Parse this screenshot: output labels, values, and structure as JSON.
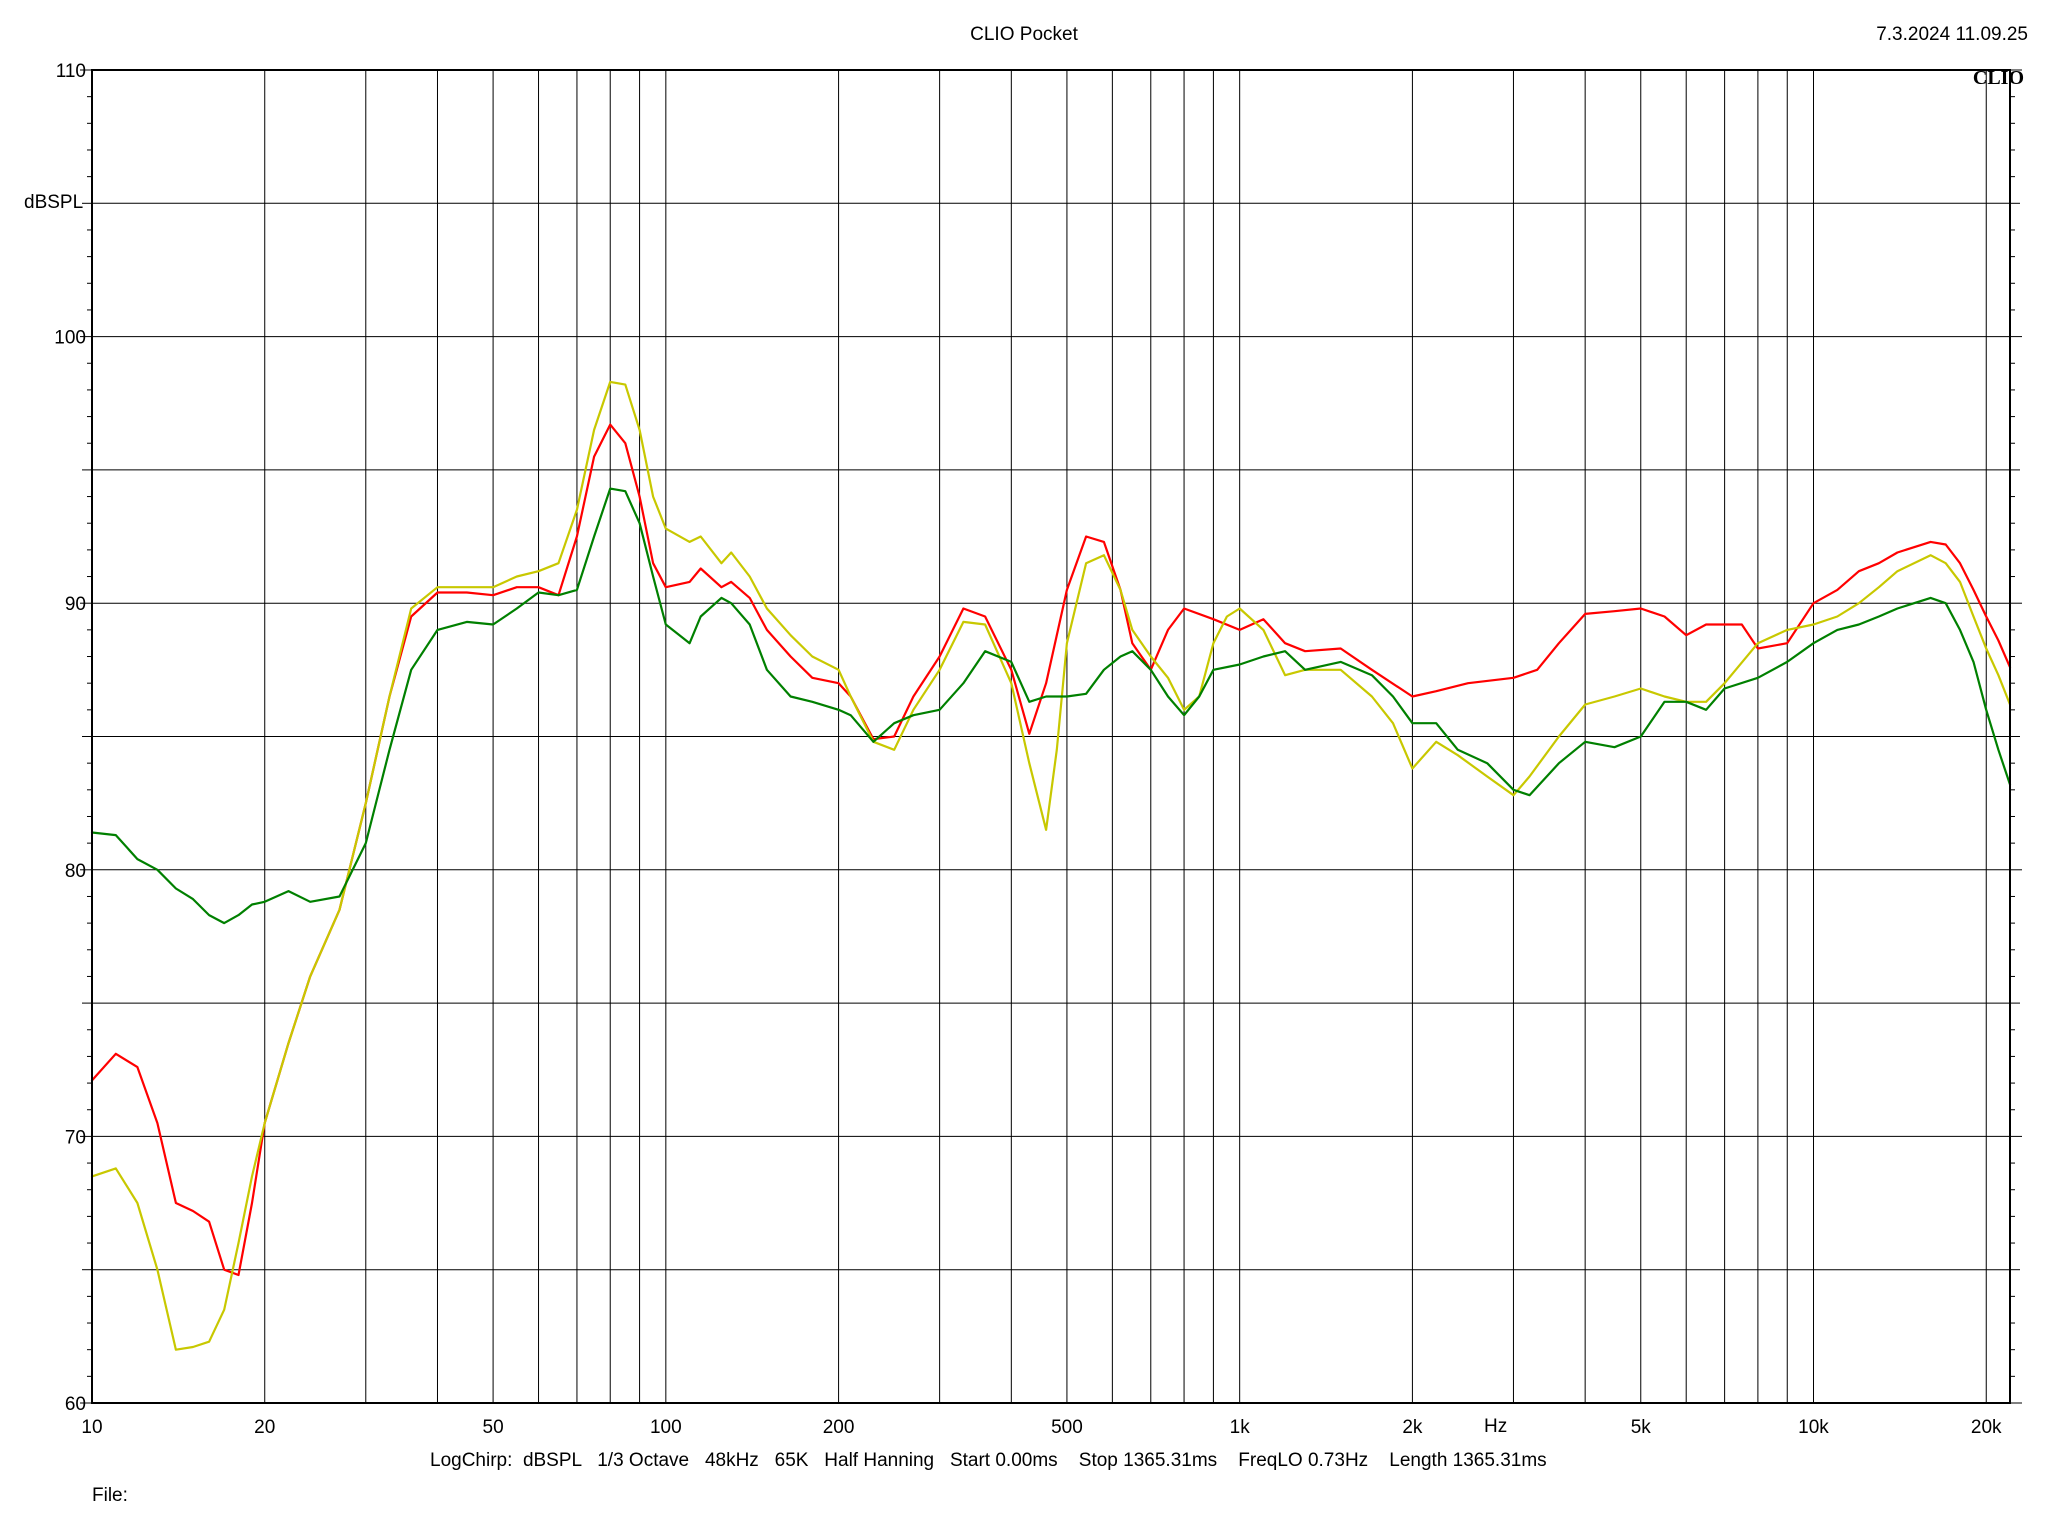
{
  "header": {
    "title": "CLIO Pocket",
    "timestamp": "7.3.2024 11.09.25",
    "logo": "CLIO"
  },
  "footer": {
    "params": "LogChirp:  dBSPL   1/3 Octave   48kHz   65K   Half Hanning   Start 0.00ms    Stop 1365.31ms    FreqLO 0.73Hz    Length 1365.31ms",
    "file_label": "File:"
  },
  "chart_data": {
    "type": "line",
    "title": "CLIO Pocket",
    "ylabel": "dBSPL",
    "xlabel": "Hz",
    "xscale": "log",
    "xlim": [
      10,
      22000
    ],
    "ylim": [
      60,
      110
    ],
    "grid": true,
    "y_ticks": [
      {
        "value": 60,
        "label": "60"
      },
      {
        "value": 70,
        "label": "70"
      },
      {
        "value": 80,
        "label": "80"
      },
      {
        "value": 90,
        "label": "90"
      },
      {
        "value": 100,
        "label": "100"
      },
      {
        "value": 110,
        "label": "110"
      }
    ],
    "x_ticks": [
      {
        "value": 10,
        "label": "10"
      },
      {
        "value": 20,
        "label": "20"
      },
      {
        "value": 50,
        "label": "50"
      },
      {
        "value": 100,
        "label": "100"
      },
      {
        "value": 200,
        "label": "200"
      },
      {
        "value": 500,
        "label": "500"
      },
      {
        "value": 1000,
        "label": "1k"
      },
      {
        "value": 2000,
        "label": "2k"
      },
      {
        "value": 5000,
        "label": "5k"
      },
      {
        "value": 10000,
        "label": "10k"
      },
      {
        "value": 20000,
        "label": "20k"
      }
    ],
    "series": [
      {
        "color": "#ff0000",
        "points": [
          [
            10,
            72.1
          ],
          [
            11,
            73.1
          ],
          [
            12,
            72.6
          ],
          [
            13,
            70.5
          ],
          [
            14,
            67.5
          ],
          [
            15,
            67.2
          ],
          [
            16,
            66.8
          ],
          [
            17,
            65.0
          ],
          [
            18,
            64.8
          ],
          [
            19,
            67.5
          ],
          [
            20,
            70.5
          ],
          [
            22,
            73.5
          ],
          [
            24,
            76.0
          ],
          [
            27,
            78.5
          ],
          [
            30,
            82.5
          ],
          [
            33,
            86.5
          ],
          [
            36,
            89.5
          ],
          [
            40,
            90.4
          ],
          [
            45,
            90.4
          ],
          [
            50,
            90.3
          ],
          [
            55,
            90.6
          ],
          [
            60,
            90.6
          ],
          [
            65,
            90.3
          ],
          [
            70,
            92.5
          ],
          [
            75,
            95.5
          ],
          [
            80,
            96.7
          ],
          [
            85,
            96.0
          ],
          [
            90,
            94.0
          ],
          [
            95,
            91.5
          ],
          [
            100,
            90.6
          ],
          [
            110,
            90.8
          ],
          [
            115,
            91.3
          ],
          [
            125,
            90.6
          ],
          [
            130,
            90.8
          ],
          [
            140,
            90.2
          ],
          [
            150,
            89.0
          ],
          [
            165,
            88.0
          ],
          [
            180,
            87.2
          ],
          [
            200,
            87.0
          ],
          [
            210,
            86.5
          ],
          [
            230,
            84.9
          ],
          [
            250,
            85.0
          ],
          [
            270,
            86.5
          ],
          [
            300,
            88.0
          ],
          [
            330,
            89.8
          ],
          [
            360,
            89.5
          ],
          [
            400,
            87.5
          ],
          [
            430,
            85.1
          ],
          [
            460,
            87.0
          ],
          [
            500,
            90.5
          ],
          [
            540,
            92.5
          ],
          [
            580,
            92.3
          ],
          [
            620,
            90.5
          ],
          [
            650,
            88.5
          ],
          [
            700,
            87.5
          ],
          [
            750,
            89.0
          ],
          [
            800,
            89.8
          ],
          [
            900,
            89.4
          ],
          [
            1000,
            89.0
          ],
          [
            1100,
            89.4
          ],
          [
            1200,
            88.5
          ],
          [
            1300,
            88.2
          ],
          [
            1500,
            88.3
          ],
          [
            1700,
            87.5
          ],
          [
            2000,
            86.5
          ],
          [
            2200,
            86.7
          ],
          [
            2500,
            87.0
          ],
          [
            3000,
            87.2
          ],
          [
            3300,
            87.5
          ],
          [
            3600,
            88.5
          ],
          [
            4000,
            89.6
          ],
          [
            4500,
            89.7
          ],
          [
            5000,
            89.8
          ],
          [
            5500,
            89.5
          ],
          [
            6000,
            88.8
          ],
          [
            6500,
            89.2
          ],
          [
            7000,
            89.2
          ],
          [
            7500,
            89.2
          ],
          [
            8000,
            88.3
          ],
          [
            9000,
            88.5
          ],
          [
            10000,
            90.0
          ],
          [
            11000,
            90.5
          ],
          [
            12000,
            91.2
          ],
          [
            13000,
            91.5
          ],
          [
            14000,
            91.9
          ],
          [
            16000,
            92.3
          ],
          [
            17000,
            92.2
          ],
          [
            18000,
            91.5
          ],
          [
            19000,
            90.5
          ],
          [
            20000,
            89.5
          ],
          [
            21000,
            88.6
          ],
          [
            22000,
            87.6
          ]
        ]
      },
      {
        "color": "#c8c800",
        "points": [
          [
            10,
            68.5
          ],
          [
            11,
            68.8
          ],
          [
            12,
            67.5
          ],
          [
            13,
            65.0
          ],
          [
            14,
            62.0
          ],
          [
            15,
            62.1
          ],
          [
            16,
            62.3
          ],
          [
            17,
            63.5
          ],
          [
            18,
            66.0
          ],
          [
            19,
            68.5
          ],
          [
            20,
            70.5
          ],
          [
            22,
            73.5
          ],
          [
            24,
            76.0
          ],
          [
            27,
            78.5
          ],
          [
            30,
            82.5
          ],
          [
            33,
            86.5
          ],
          [
            36,
            89.8
          ],
          [
            40,
            90.6
          ],
          [
            45,
            90.6
          ],
          [
            50,
            90.6
          ],
          [
            55,
            91.0
          ],
          [
            60,
            91.2
          ],
          [
            65,
            91.5
          ],
          [
            70,
            93.5
          ],
          [
            75,
            96.5
          ],
          [
            80,
            98.3
          ],
          [
            85,
            98.2
          ],
          [
            90,
            96.5
          ],
          [
            95,
            94.0
          ],
          [
            100,
            92.8
          ],
          [
            110,
            92.3
          ],
          [
            115,
            92.5
          ],
          [
            125,
            91.5
          ],
          [
            130,
            91.9
          ],
          [
            140,
            91.0
          ],
          [
            150,
            89.8
          ],
          [
            165,
            88.8
          ],
          [
            180,
            88.0
          ],
          [
            200,
            87.5
          ],
          [
            210,
            86.5
          ],
          [
            230,
            84.8
          ],
          [
            250,
            84.5
          ],
          [
            270,
            86.0
          ],
          [
            300,
            87.5
          ],
          [
            330,
            89.3
          ],
          [
            360,
            89.2
          ],
          [
            400,
            87.0
          ],
          [
            430,
            84.0
          ],
          [
            460,
            81.5
          ],
          [
            480,
            84.5
          ],
          [
            500,
            88.5
          ],
          [
            540,
            91.5
          ],
          [
            580,
            91.8
          ],
          [
            620,
            90.5
          ],
          [
            650,
            89.0
          ],
          [
            700,
            88.0
          ],
          [
            750,
            87.2
          ],
          [
            800,
            86.0
          ],
          [
            850,
            86.5
          ],
          [
            900,
            88.5
          ],
          [
            950,
            89.5
          ],
          [
            1000,
            89.8
          ],
          [
            1100,
            89.0
          ],
          [
            1200,
            87.3
          ],
          [
            1300,
            87.5
          ],
          [
            1500,
            87.5
          ],
          [
            1700,
            86.5
          ],
          [
            1850,
            85.5
          ],
          [
            2000,
            83.8
          ],
          [
            2200,
            84.8
          ],
          [
            2400,
            84.3
          ],
          [
            2700,
            83.5
          ],
          [
            3000,
            82.8
          ],
          [
            3200,
            83.5
          ],
          [
            3600,
            85.0
          ],
          [
            4000,
            86.2
          ],
          [
            4500,
            86.5
          ],
          [
            5000,
            86.8
          ],
          [
            5500,
            86.5
          ],
          [
            6000,
            86.3
          ],
          [
            6500,
            86.3
          ],
          [
            7000,
            87.0
          ],
          [
            8000,
            88.5
          ],
          [
            9000,
            89.0
          ],
          [
            10000,
            89.2
          ],
          [
            11000,
            89.5
          ],
          [
            12000,
            90.0
          ],
          [
            13000,
            90.6
          ],
          [
            14000,
            91.2
          ],
          [
            16000,
            91.8
          ],
          [
            17000,
            91.5
          ],
          [
            18000,
            90.8
          ],
          [
            19000,
            89.5
          ],
          [
            20000,
            88.3
          ],
          [
            21000,
            87.3
          ],
          [
            22000,
            86.2
          ]
        ]
      },
      {
        "color": "#008000",
        "points": [
          [
            10,
            81.4
          ],
          [
            11,
            81.3
          ],
          [
            12,
            80.4
          ],
          [
            13,
            80.0
          ],
          [
            14,
            79.3
          ],
          [
            15,
            78.9
          ],
          [
            16,
            78.3
          ],
          [
            17,
            78.0
          ],
          [
            18,
            78.3
          ],
          [
            19,
            78.7
          ],
          [
            20,
            78.8
          ],
          [
            22,
            79.2
          ],
          [
            24,
            78.8
          ],
          [
            27,
            79.0
          ],
          [
            30,
            81.0
          ],
          [
            33,
            84.5
          ],
          [
            36,
            87.5
          ],
          [
            40,
            89.0
          ],
          [
            45,
            89.3
          ],
          [
            50,
            89.2
          ],
          [
            55,
            89.8
          ],
          [
            60,
            90.4
          ],
          [
            65,
            90.3
          ],
          [
            70,
            90.5
          ],
          [
            75,
            92.5
          ],
          [
            80,
            94.3
          ],
          [
            85,
            94.2
          ],
          [
            90,
            93.0
          ],
          [
            95,
            91.0
          ],
          [
            100,
            89.2
          ],
          [
            110,
            88.5
          ],
          [
            115,
            89.5
          ],
          [
            125,
            90.2
          ],
          [
            130,
            90.0
          ],
          [
            140,
            89.2
          ],
          [
            150,
            87.5
          ],
          [
            165,
            86.5
          ],
          [
            180,
            86.3
          ],
          [
            200,
            86.0
          ],
          [
            210,
            85.8
          ],
          [
            230,
            84.8
          ],
          [
            250,
            85.5
          ],
          [
            270,
            85.8
          ],
          [
            300,
            86.0
          ],
          [
            330,
            87.0
          ],
          [
            360,
            88.2
          ],
          [
            400,
            87.8
          ],
          [
            430,
            86.3
          ],
          [
            460,
            86.5
          ],
          [
            500,
            86.5
          ],
          [
            540,
            86.6
          ],
          [
            580,
            87.5
          ],
          [
            620,
            88.0
          ],
          [
            650,
            88.2
          ],
          [
            700,
            87.5
          ],
          [
            750,
            86.5
          ],
          [
            800,
            85.8
          ],
          [
            850,
            86.5
          ],
          [
            900,
            87.5
          ],
          [
            1000,
            87.7
          ],
          [
            1100,
            88.0
          ],
          [
            1200,
            88.2
          ],
          [
            1300,
            87.5
          ],
          [
            1500,
            87.8
          ],
          [
            1700,
            87.3
          ],
          [
            1850,
            86.5
          ],
          [
            2000,
            85.5
          ],
          [
            2200,
            85.5
          ],
          [
            2400,
            84.5
          ],
          [
            2700,
            84.0
          ],
          [
            3000,
            83.0
          ],
          [
            3200,
            82.8
          ],
          [
            3600,
            84.0
          ],
          [
            4000,
            84.8
          ],
          [
            4500,
            84.6
          ],
          [
            5000,
            85.0
          ],
          [
            5500,
            86.3
          ],
          [
            6000,
            86.3
          ],
          [
            6500,
            86.0
          ],
          [
            7000,
            86.8
          ],
          [
            8000,
            87.2
          ],
          [
            9000,
            87.8
          ],
          [
            10000,
            88.5
          ],
          [
            11000,
            89.0
          ],
          [
            12000,
            89.2
          ],
          [
            13000,
            89.5
          ],
          [
            14000,
            89.8
          ],
          [
            16000,
            90.2
          ],
          [
            17000,
            90.0
          ],
          [
            18000,
            89.0
          ],
          [
            19000,
            87.8
          ],
          [
            20000,
            86.0
          ],
          [
            21000,
            84.5
          ],
          [
            22000,
            83.2
          ]
        ]
      }
    ]
  }
}
